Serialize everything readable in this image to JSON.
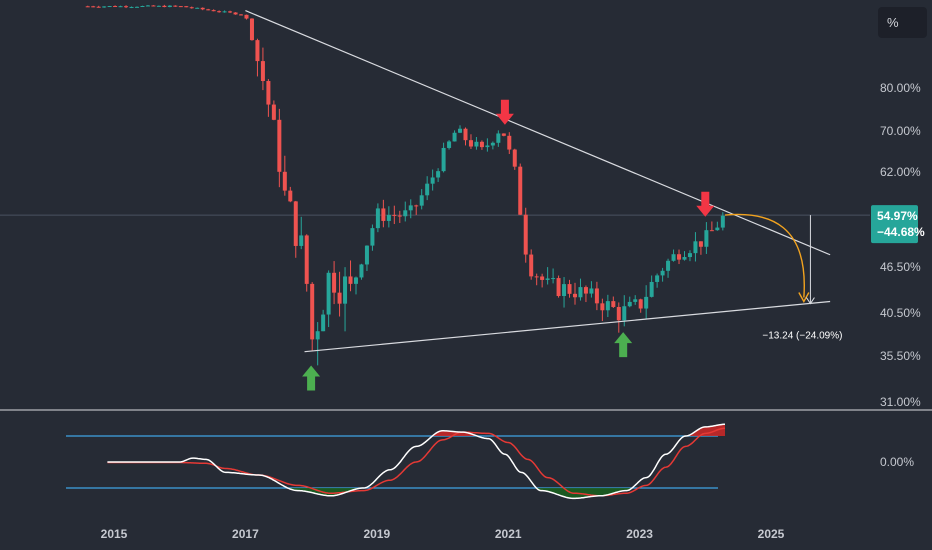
{
  "scale_button": {
    "label": "%"
  },
  "colors": {
    "background": "#262b35",
    "up_candle": "#26a69a",
    "down_candle": "#ef5350",
    "trendline": "#d9dbe0",
    "projection_arrow": "#f2a31f",
    "signal_down_arrow": "#f23645",
    "signal_up_arrow": "#4caf50",
    "price_label_bg": "#26a69a",
    "oscillator_band": "#3fa4e4",
    "oscillator_fast": "#ffffff",
    "oscillator_slow": "#e53935",
    "oscillator_fill_high": "#c62828",
    "oscillator_fill_low": "#1b5e20"
  },
  "price_label": {
    "value": "54.97%",
    "change": "−44.68%"
  },
  "measure_label": "−13.24 (−24.09%)",
  "oscillator_axis_label": "0.00%",
  "chart_data": [
    {
      "type": "candlestick",
      "title": "",
      "scale": "percent",
      "y_tick_labels": [
        "80.00%",
        "70.00%",
        "62.00%",
        "46.50%",
        "40.50%",
        "35.50%",
        "31.00%"
      ],
      "y_tick_values": [
        80.0,
        70.0,
        62.0,
        46.5,
        40.5,
        35.5,
        31.0
      ],
      "x_tick_labels": [
        "2015",
        "2017",
        "2019",
        "2021",
        "2023",
        "2025"
      ],
      "x_tick_values": [
        2015,
        2017,
        2019,
        2021,
        2023,
        2025
      ],
      "current_value": 54.97,
      "candles_yearly_approx": {
        "x": [
          2014.6,
          2015.0,
          2015.5,
          2016.0,
          2016.5,
          2017.0,
          2017.3,
          2017.6,
          2017.9,
          2018.0,
          2018.3,
          2018.6,
          2019.0,
          2019.5,
          2019.8,
          2020.2,
          2020.6,
          2020.9,
          2021.1,
          2021.3,
          2021.6,
          2022.0,
          2022.4,
          2022.7,
          2023.0,
          2023.3,
          2023.6,
          2024.0,
          2024.3
        ],
        "close": [
          99.0,
          99.0,
          99.0,
          99.0,
          98.0,
          97.0,
          80.0,
          58.0,
          48.0,
          37.0,
          46.0,
          43.0,
          55.0,
          55.0,
          60.0,
          70.0,
          66.0,
          71.0,
          62.0,
          47.0,
          44.0,
          43.5,
          42.0,
          40.5,
          41.5,
          46.0,
          49.0,
          51.0,
          54.97
        ]
      },
      "trendlines": [
        {
          "name": "",
          "from": [
            2017.0,
            98.0
          ],
          "to": [
            2025.9,
            48.5
          ]
        },
        {
          "name": "",
          "from": [
            2017.9,
            36.0
          ],
          "to": [
            2025.9,
            42.0
          ]
        }
      ],
      "annotations": [
        {
          "kind": "down-arrow",
          "x": 2020.95,
          "y": 74.0
        },
        {
          "kind": "down-arrow",
          "x": 2024.0,
          "y": 56.5
        },
        {
          "kind": "up-arrow",
          "x": 2018.0,
          "y": 33.5
        },
        {
          "kind": "up-arrow",
          "x": 2022.75,
          "y": 37.0
        },
        {
          "kind": "projection-arrow",
          "from": [
            2024.3,
            54.97
          ],
          "to": [
            2025.5,
            42.0
          ]
        },
        {
          "kind": "measure",
          "from": [
            2025.6,
            54.97
          ],
          "to": [
            2025.6,
            41.73
          ],
          "text": "−13.24 (−24.09%)"
        }
      ]
    },
    {
      "type": "line",
      "title": "",
      "y_tick_labels": [
        "0.00%"
      ],
      "bands": [
        1.0,
        -1.0
      ],
      "series": [
        {
          "x": [
            2014.9,
            2015.5,
            2016.0,
            2016.2,
            2016.4,
            2016.7,
            2017.2,
            2017.8,
            2018.3,
            2018.8,
            2019.2,
            2019.6,
            2020.0,
            2020.3,
            2020.7,
            2020.95,
            2021.2,
            2021.5,
            2022.0,
            2022.4,
            2022.8,
            2023.1,
            2023.4,
            2023.7,
            2024.0,
            2024.3
          ],
          "values": [
            0.0,
            0.0,
            0.0,
            0.15,
            0.1,
            -0.4,
            -0.5,
            -1.1,
            -1.3,
            -1.0,
            -0.3,
            0.6,
            1.2,
            1.15,
            0.9,
            0.3,
            -0.4,
            -1.1,
            -1.4,
            -1.3,
            -1.1,
            -0.6,
            0.3,
            1.0,
            1.35,
            1.45
          ]
        },
        {
          "x": [
            2014.9,
            2015.5,
            2016.0,
            2016.4,
            2016.7,
            2017.2,
            2017.8,
            2018.3,
            2018.8,
            2019.2,
            2019.6,
            2020.0,
            2020.3,
            2020.7,
            2021.0,
            2021.3,
            2021.6,
            2022.0,
            2022.4,
            2022.8,
            2023.1,
            2023.4,
            2023.7,
            2024.0,
            2024.3
          ],
          "values": [
            -0.02,
            -0.02,
            -0.02,
            -0.05,
            -0.25,
            -0.5,
            -0.9,
            -1.2,
            -1.1,
            -0.7,
            0.0,
            0.85,
            1.15,
            1.1,
            0.75,
            0.1,
            -0.6,
            -1.2,
            -1.3,
            -1.2,
            -0.9,
            -0.2,
            0.6,
            1.1,
            1.3
          ]
        }
      ]
    }
  ]
}
